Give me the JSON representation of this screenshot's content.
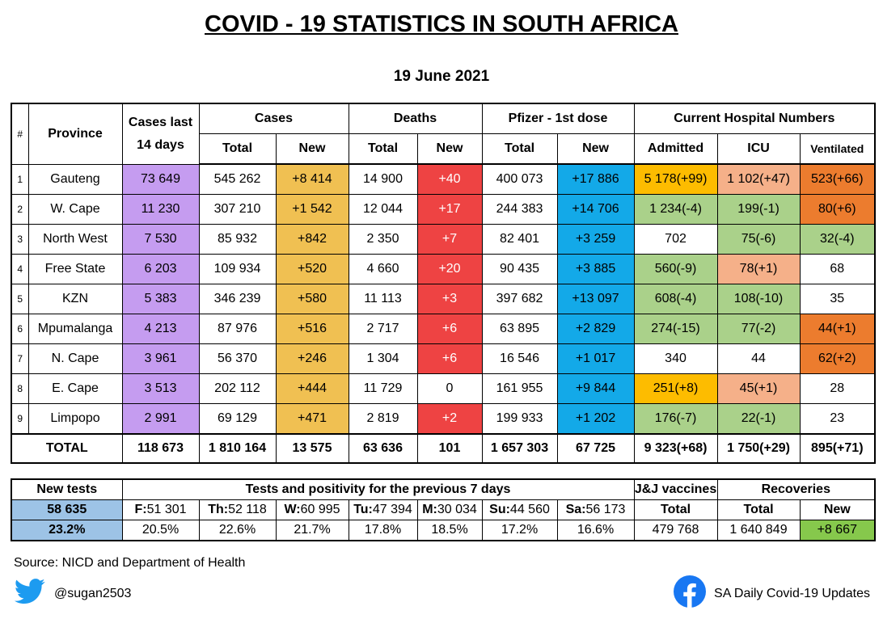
{
  "title": "COVID - 19 STATISTICS IN SOUTH AFRICA",
  "date": "19 June 2021",
  "headers": {
    "index": "#",
    "province": "Province",
    "cases_14_line1": "Cases last",
    "cases_14_line2": "14 days",
    "cases": "Cases",
    "deaths": "Deaths",
    "pfizer": "Pfizer - 1st dose",
    "hospital": "Current Hospital Numbers",
    "total": "Total",
    "new": "New",
    "admitted": "Admitted",
    "icu": "ICU",
    "ventilated": "Ventilated"
  },
  "rows": [
    {
      "n": "1",
      "province": "Gauteng",
      "c14": "73 649",
      "ct": "545 262",
      "cn": "+8 414",
      "dt": "14 900",
      "dn": "+40",
      "pt": "400 073",
      "pn": "+17 886",
      "adm": "5 178(+99)",
      "icu": "1 102(+47)",
      "ven": "523(+66)"
    },
    {
      "n": "2",
      "province": "W. Cape",
      "c14": "11 230",
      "ct": "307 210",
      "cn": "+1 542",
      "dt": "12 044",
      "dn": "+17",
      "pt": "244 383",
      "pn": "+14 706",
      "adm": "1 234(-4)",
      "icu": "199(-1)",
      "ven": "80(+6)"
    },
    {
      "n": "3",
      "province": "North West",
      "c14": "7 530",
      "ct": "85 932",
      "cn": "+842",
      "dt": "2 350",
      "dn": "+7",
      "pt": "82 401",
      "pn": "+3 259",
      "adm": "702",
      "icu": "75(-6)",
      "ven": "32(-4)"
    },
    {
      "n": "4",
      "province": "Free State",
      "c14": "6 203",
      "ct": "109 934",
      "cn": "+520",
      "dt": "4 660",
      "dn": "+20",
      "pt": "90 435",
      "pn": "+3 885",
      "adm": "560(-9)",
      "icu": "78(+1)",
      "ven": "68"
    },
    {
      "n": "5",
      "province": "KZN",
      "c14": "5 383",
      "ct": "346 239",
      "cn": "+580",
      "dt": "11 113",
      "dn": "+3",
      "pt": "397 682",
      "pn": "+13 097",
      "adm": "608(-4)",
      "icu": "108(-10)",
      "ven": "35"
    },
    {
      "n": "6",
      "province": "Mpumalanga",
      "c14": "4 213",
      "ct": "87 976",
      "cn": "+516",
      "dt": "2 717",
      "dn": "+6",
      "pt": "63 895",
      "pn": "+2 829",
      "adm": "274(-15)",
      "icu": "77(-2)",
      "ven": "44(+1)"
    },
    {
      "n": "7",
      "province": "N. Cape",
      "c14": "3 961",
      "ct": "56 370",
      "cn": "+246",
      "dt": "1 304",
      "dn": "+6",
      "pt": "16 546",
      "pn": "+1 017",
      "adm": "340",
      "icu": "44",
      "ven": "62(+2)"
    },
    {
      "n": "8",
      "province": "E. Cape",
      "c14": "3 513",
      "ct": "202 112",
      "cn": "+444",
      "dt": "11 729",
      "dn": "0",
      "pt": "161 955",
      "pn": "+9 844",
      "adm": "251(+8)",
      "icu": "45(+1)",
      "ven": "28"
    },
    {
      "n": "9",
      "province": "Limpopo",
      "c14": "2 991",
      "ct": "69 129",
      "cn": "+471",
      "dt": "2 819",
      "dn": "+2",
      "pt": "199 933",
      "pn": "+1 202",
      "adm": "176(-7)",
      "icu": "22(-1)",
      "ven": "23"
    }
  ],
  "total": {
    "label": "TOTAL",
    "c14": "118 673",
    "ct": "1 810 164",
    "cn": "13 575",
    "dt": "63 636",
    "dn": "101",
    "pt": "1 657 303",
    "pn": "67 725",
    "adm": "9 323(+68)",
    "icu": "1 750(+29)",
    "ven": "895(+71)"
  },
  "bottom": {
    "new_tests_label": "New tests",
    "new_tests_value": "58 635",
    "positivity": "23.2%",
    "tests_header": "Tests and positivity for the previous 7 days",
    "days": [
      {
        "label": "F:",
        "tests": "51 301",
        "pos": "20.5%"
      },
      {
        "label": "Th:",
        "tests": "52 118",
        "pos": "22.6%"
      },
      {
        "label": "W:",
        "tests": "60 995",
        "pos": "21.7%"
      },
      {
        "label": "Tu:",
        "tests": "47 394",
        "pos": "17.8%"
      },
      {
        "label": "M:",
        "tests": "30 034",
        "pos": "18.5%"
      },
      {
        "label": "Su:",
        "tests": "44 560",
        "pos": "17.2%"
      },
      {
        "label": "Sa:",
        "tests": "56 173",
        "pos": "16.6%"
      }
    ],
    "jj_label": "J&J vaccines",
    "jj_total_label": "Total",
    "jj_total": "479 768",
    "recoveries_label": "Recoveries",
    "rec_total_label": "Total",
    "rec_new_label": "New",
    "rec_total": "1 640 849",
    "rec_new": "+8 667"
  },
  "source": "Source: NICD and Department of Health",
  "twitter_handle": "@sugan2503",
  "facebook_page": "SA Daily Covid-19 Updates",
  "icons": {
    "twitter": "twitter-bird-icon",
    "facebook": "facebook-icon"
  },
  "colors": {
    "purple": "#c59cf0",
    "gold": "#f0c052",
    "red": "#ee4343",
    "blue": "#13a9e8",
    "orange": "#fdbc00",
    "green": "#aad18a",
    "salmon": "#f5b089",
    "dark_orange": "#ec7c2e",
    "light_green": "#86c84c",
    "light_blue": "#9dc3e6"
  }
}
